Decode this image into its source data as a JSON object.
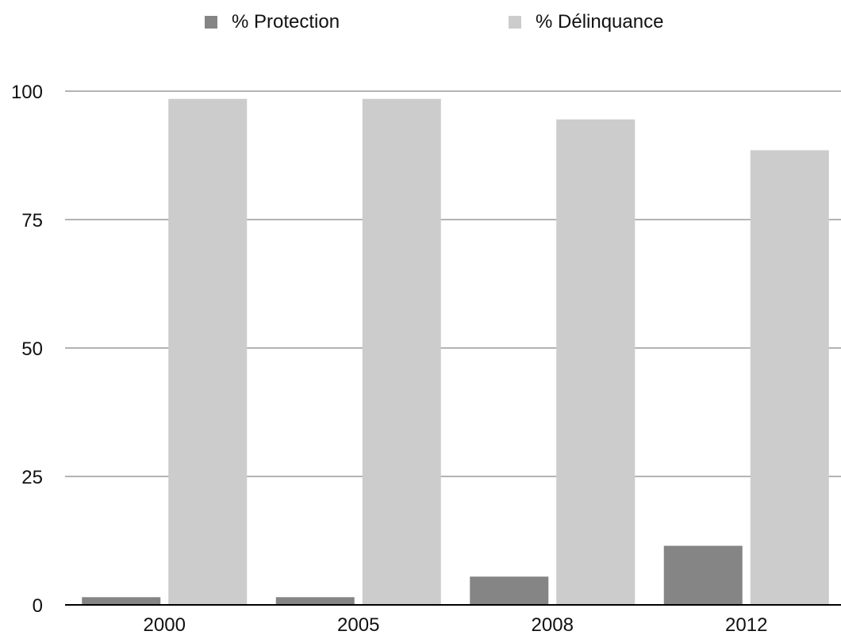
{
  "chart_data": {
    "type": "bar",
    "title": "",
    "xlabel": "",
    "ylabel": "",
    "categories": [
      "2000",
      "2005",
      "2008",
      "2012"
    ],
    "series": [
      {
        "name": "% Protection",
        "values": [
          1.5,
          1.5,
          5.5,
          11.5
        ],
        "color": "#858585"
      },
      {
        "name": "% Délinquance",
        "values": [
          98.5,
          98.5,
          94.5,
          88.5
        ],
        "color": "#cccccc"
      }
    ],
    "ylim": [
      0,
      100
    ],
    "yticks": [
      "0",
      "25",
      "50",
      "75",
      "100"
    ],
    "grid": true,
    "legend_position": "top"
  }
}
